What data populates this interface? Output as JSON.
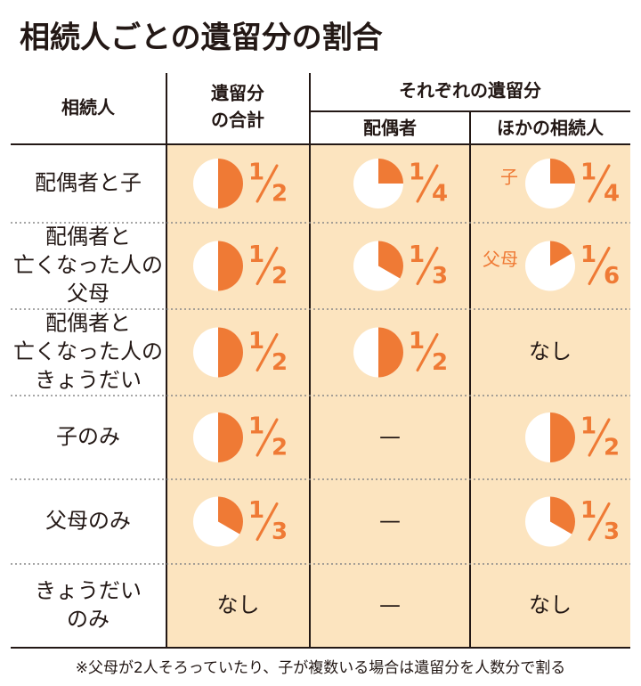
{
  "title": "相続人ごとの遺留分の割合",
  "header": {
    "heir": "相続人",
    "total": [
      "遺留分",
      "の合計"
    ],
    "group": "それぞれの遺留分",
    "spouse": "配偶者",
    "other": "ほかの相続人"
  },
  "rows": [
    {
      "heir": [
        "配偶者と子"
      ],
      "total": {
        "numerator": 1,
        "denominator": 2
      },
      "spouse": {
        "numerator": 1,
        "denominator": 4
      },
      "other": {
        "prefix": "子",
        "numerator": 1,
        "denominator": 4
      }
    },
    {
      "heir": [
        "配偶者と",
        "亡くなった人の",
        "父母"
      ],
      "total": {
        "numerator": 1,
        "denominator": 2
      },
      "spouse": {
        "numerator": 1,
        "denominator": 3
      },
      "other": {
        "prefix": "父母",
        "numerator": 1,
        "denominator": 6
      }
    },
    {
      "heir": [
        "配偶者と",
        "亡くなった人の",
        "きょうだい"
      ],
      "total": {
        "numerator": 1,
        "denominator": 2
      },
      "spouse": {
        "numerator": 1,
        "denominator": 2
      },
      "other": "なし"
    },
    {
      "heir": [
        "子のみ"
      ],
      "total": {
        "numerator": 1,
        "denominator": 2
      },
      "spouse": "—",
      "other": {
        "numerator": 1,
        "denominator": 2
      }
    },
    {
      "heir": [
        "父母のみ"
      ],
      "total": {
        "numerator": 1,
        "denominator": 3
      },
      "spouse": "—",
      "other": {
        "numerator": 1,
        "denominator": 3
      }
    },
    {
      "heir": [
        "きょうだい",
        "のみ"
      ],
      "total": "なし",
      "spouse": "—",
      "other": "なし"
    }
  ],
  "footnote": "※父母が2人そろっていたり、子が複数いる場合は遺留分を人数分で割る"
}
